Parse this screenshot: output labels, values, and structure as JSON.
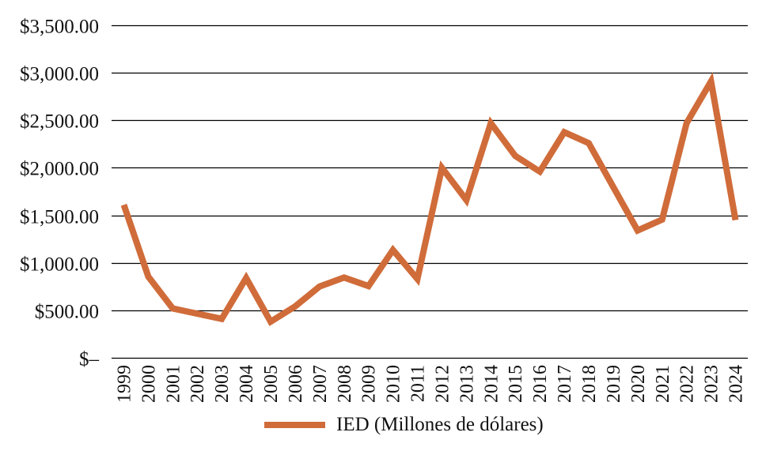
{
  "chart_data": {
    "type": "line",
    "title": "",
    "xlabel": "",
    "ylabel": "",
    "ylim": [
      0,
      3500
    ],
    "y_ticks": [
      0,
      500,
      1000,
      1500,
      2000,
      2500,
      3000,
      3500
    ],
    "y_tick_labels": [
      "$–",
      "$500.00",
      "$1,000.00",
      "$1,500.00",
      "$2,000.00",
      "$2,500.00",
      "$3,000.00",
      "$3,500.00"
    ],
    "grid": "horizontal",
    "legend_position": "bottom",
    "categories": [
      "1999",
      "2000",
      "2001",
      "2002",
      "2003",
      "2004",
      "2005",
      "2006",
      "2007",
      "2008",
      "2009",
      "2010",
      "2011",
      "2012",
      "2013",
      "2014",
      "2015",
      "2016",
      "2017",
      "2018",
      "2019",
      "2020",
      "2021",
      "2022",
      "2023",
      "2024"
    ],
    "series": [
      {
        "name": "IED (Millones de dólares)",
        "color": "#D06C3A",
        "values": [
          1610,
          855,
          520,
          465,
          410,
          840,
          380,
          540,
          750,
          845,
          755,
          1135,
          830,
          2000,
          1660,
          2470,
          2125,
          1960,
          2375,
          2260,
          1800,
          1340,
          1455,
          2470,
          2910,
          1450
        ]
      }
    ]
  },
  "legend": {
    "label": "IED (Millones de dólares)",
    "color": "#D06C3A"
  },
  "colors": {
    "grid": "#000000",
    "line": "#D06C3A"
  }
}
